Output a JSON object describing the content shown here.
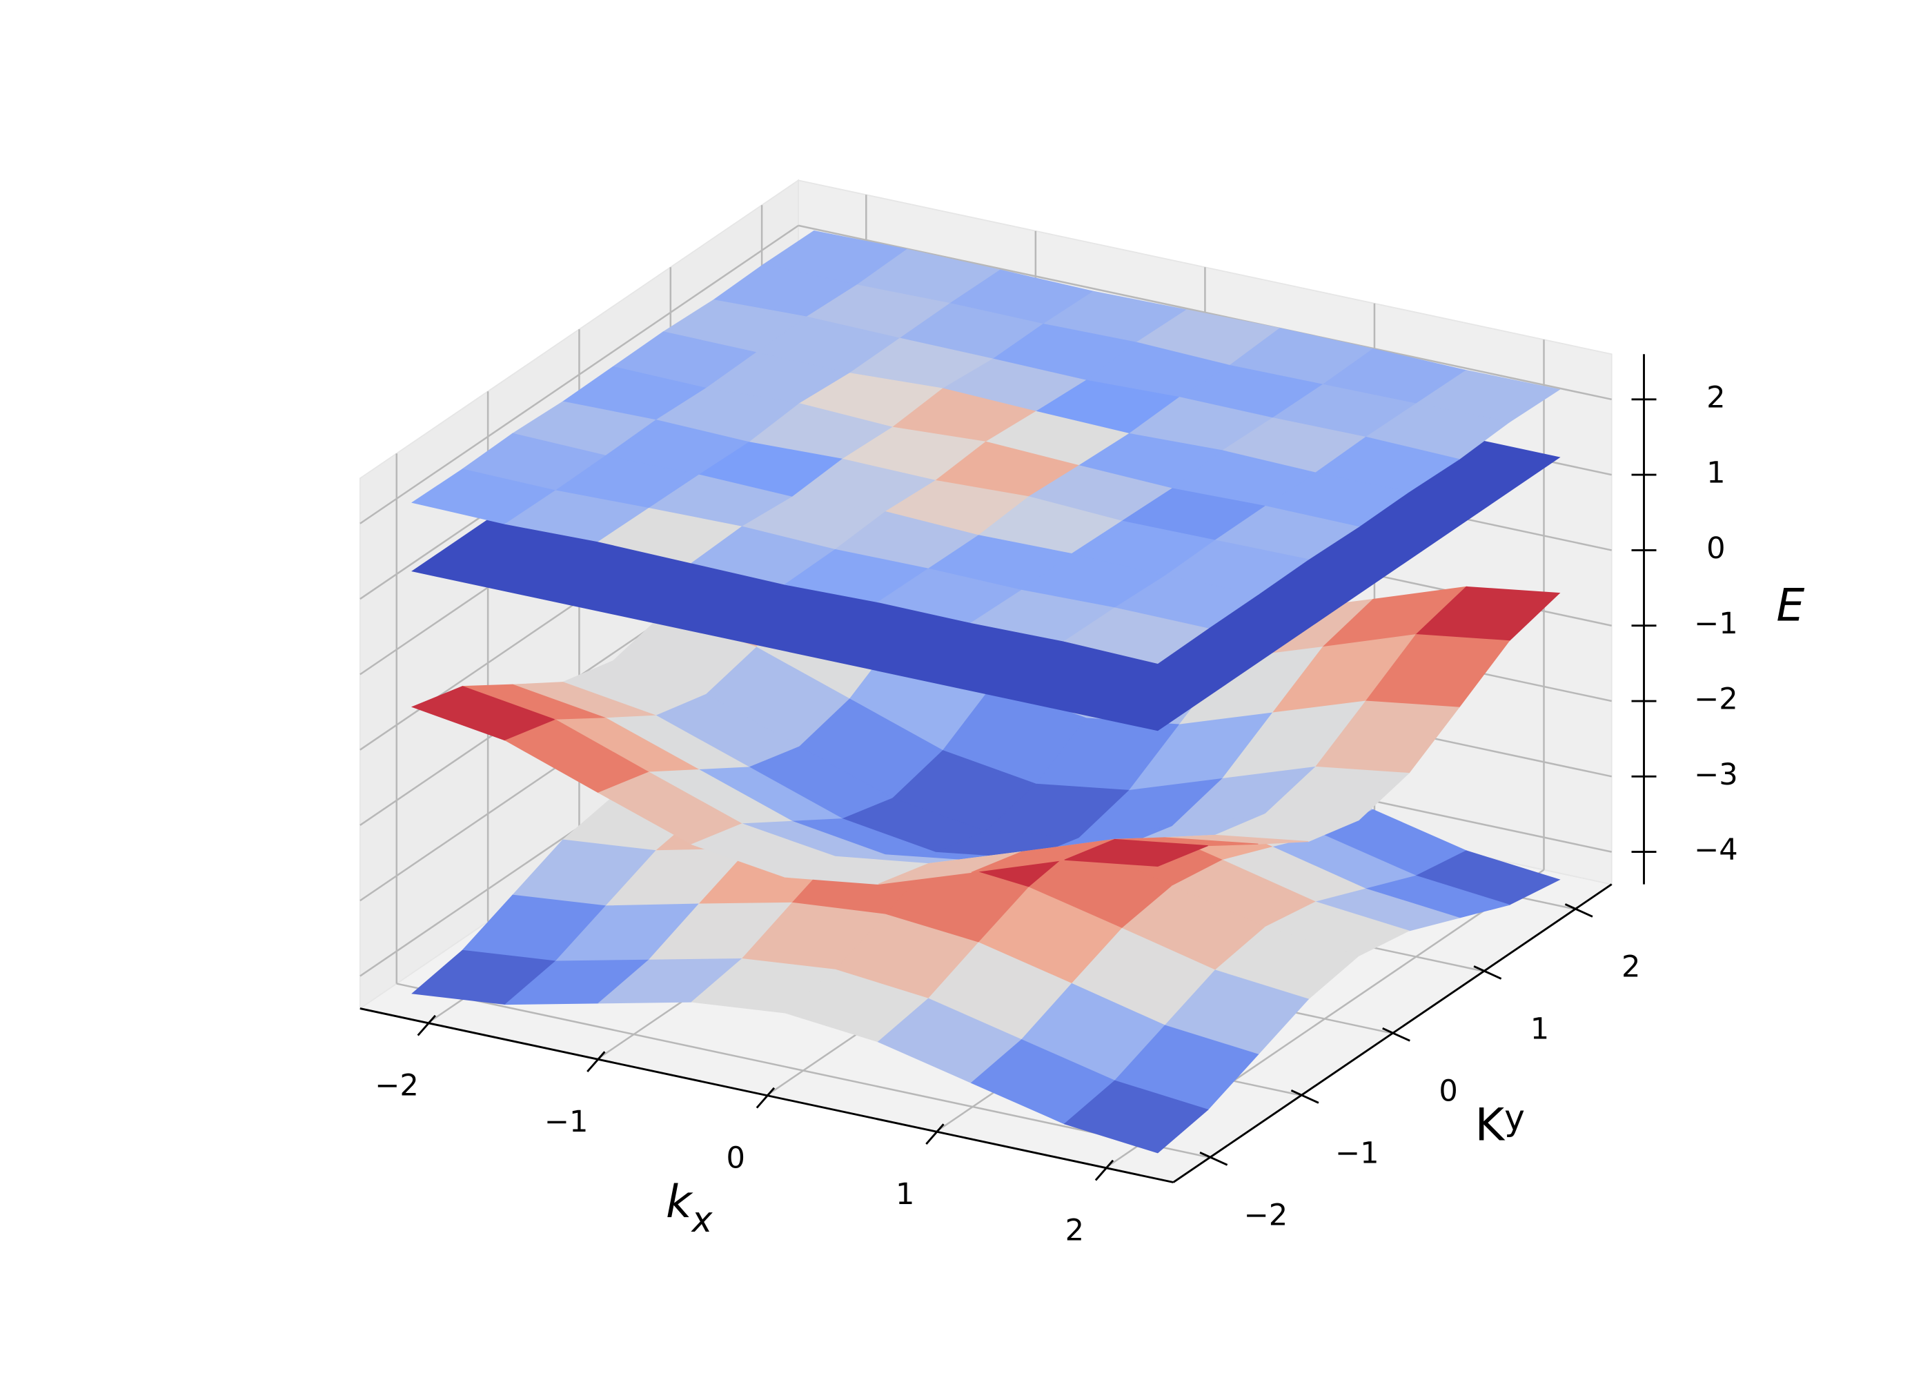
{
  "chart_data": {
    "type": "surface3d",
    "colormap": "coolwarm",
    "xlabel": {
      "text": "k",
      "subscript": "x"
    },
    "ylabel": {
      "text": "K",
      "subscript": "y"
    },
    "zlabel": "E",
    "xlim": [
      -2.4,
      2.4
    ],
    "ylim": [
      -2.4,
      2.4
    ],
    "zlim": [
      -4.43,
      2.6
    ],
    "xticks": [
      {
        "value": -2,
        "label": "−2"
      },
      {
        "value": -1,
        "label": "−1"
      },
      0,
      1,
      2
    ],
    "yticks": [
      {
        "value": -2,
        "label": "−2"
      },
      {
        "value": -1,
        "label": "−1"
      },
      0,
      1,
      2
    ],
    "zticks": [
      {
        "value": -4,
        "label": "−4"
      },
      {
        "value": -3,
        "label": "−3"
      },
      {
        "value": -2,
        "label": "−2"
      },
      {
        "value": -1,
        "label": "−1"
      },
      0,
      1,
      2
    ],
    "grid": true,
    "series": [
      {
        "x": [
          -2.2,
          -1.65,
          -1.1,
          -0.55,
          0,
          0.55,
          1.1,
          1.65,
          2.2
        ],
        "y": [
          -2.2,
          -1.65,
          -1.1,
          -0.55,
          0,
          0.55,
          1.1,
          1.65,
          2.2
        ],
        "z": [
          [
            -4.3,
            -4.18,
            -3.9,
            -3.62,
            -3.5,
            -3.62,
            -3.9,
            -4.18,
            -4.3
          ],
          [
            -4.18,
            -4.06,
            -3.78,
            -3.5,
            -3.38,
            -3.5,
            -3.78,
            -4.06,
            -4.18
          ],
          [
            -3.9,
            -3.78,
            -3.49,
            -3.21,
            -3.1,
            -3.21,
            -3.49,
            -3.78,
            -3.9
          ],
          [
            -3.62,
            -3.5,
            -3.21,
            -2.93,
            -2.82,
            -2.93,
            -3.21,
            -3.5,
            -3.62
          ],
          [
            -3.5,
            -3.38,
            -3.1,
            -2.82,
            -2.7,
            -2.82,
            -3.1,
            -3.38,
            -3.5
          ],
          [
            -3.62,
            -3.5,
            -3.21,
            -2.93,
            -2.82,
            -2.93,
            -3.21,
            -3.5,
            -3.62
          ],
          [
            -3.9,
            -3.78,
            -3.49,
            -3.21,
            -3.1,
            -3.21,
            -3.49,
            -3.78,
            -3.9
          ],
          [
            -4.18,
            -4.06,
            -3.78,
            -3.5,
            -3.38,
            -3.5,
            -3.78,
            -4.06,
            -4.18
          ],
          [
            -4.3,
            -4.18,
            -3.9,
            -3.62,
            -3.5,
            -3.62,
            -3.9,
            -4.18,
            -4.3
          ]
        ]
      },
      {
        "x": [
          -2.2,
          -1.65,
          -1.1,
          -0.55,
          0,
          0.55,
          1.1,
          1.65,
          2.2
        ],
        "y": [
          -2.2,
          -1.65,
          -1.1,
          -0.55,
          0,
          0.55,
          1.1,
          1.65,
          2.2
        ],
        "z": [
          [
            -0.5,
            -0.68,
            -1.11,
            -1.53,
            -1.7,
            -1.53,
            -1.11,
            -0.68,
            -0.5
          ],
          [
            -0.68,
            -0.86,
            -1.29,
            -1.71,
            -1.88,
            -1.71,
            -1.29,
            -0.86,
            -0.68
          ],
          [
            -1.11,
            -1.29,
            -1.71,
            -2.13,
            -2.31,
            -2.13,
            -1.71,
            -1.29,
            -1.11
          ],
          [
            -1.53,
            -1.71,
            -2.13,
            -2.55,
            -2.73,
            -2.55,
            -2.13,
            -1.71,
            -1.53
          ],
          [
            -1.7,
            -1.88,
            -2.31,
            -2.73,
            -2.9,
            -2.73,
            -2.31,
            -1.88,
            -1.7
          ],
          [
            -1.53,
            -1.71,
            -2.13,
            -2.55,
            -2.73,
            -2.55,
            -2.13,
            -1.71,
            -1.53
          ],
          [
            -1.11,
            -1.29,
            -1.71,
            -2.13,
            -2.31,
            -2.13,
            -1.71,
            -1.29,
            -1.11
          ],
          [
            -0.68,
            -0.86,
            -1.29,
            -1.71,
            -1.88,
            -1.71,
            -1.29,
            -0.86,
            -0.68
          ],
          [
            -0.5,
            -0.68,
            -1.11,
            -1.53,
            -1.7,
            -1.53,
            -1.11,
            -0.68,
            -0.5
          ]
        ]
      },
      {
        "x": [
          -2.2,
          2.2
        ],
        "y": [
          -2.2,
          2.2
        ],
        "z": [
          [
            1.3,
            1.3
          ],
          [
            1.3,
            1.3
          ]
        ]
      },
      {
        "x": [
          -2.2,
          -1.65,
          -1.1,
          -0.55,
          0,
          0.55,
          1.1,
          1.65,
          2.2
        ],
        "y": [
          -2.2,
          -1.65,
          -1.1,
          -0.55,
          0,
          0.55,
          1.1,
          1.65,
          2.2
        ],
        "z": [
          [
            2.21,
            2.19,
            2.22,
            2.2,
            2.18,
            2.21,
            2.2,
            2.22,
            2.19
          ],
          [
            2.2,
            2.18,
            2.21,
            2.23,
            2.19,
            2.2,
            2.18,
            2.21,
            2.2
          ],
          [
            2.22,
            2.19,
            2.2,
            2.17,
            2.24,
            2.19,
            2.21,
            2.18,
            2.2
          ],
          [
            2.19,
            2.21,
            2.18,
            2.22,
            2.2,
            2.25,
            2.19,
            2.2,
            2.21
          ],
          [
            2.2,
            2.18,
            2.24,
            2.19,
            2.26,
            2.21,
            2.17,
            2.2,
            2.19
          ],
          [
            2.21,
            2.2,
            2.19,
            2.25,
            2.21,
            2.18,
            2.22,
            2.19,
            2.2
          ],
          [
            2.18,
            2.22,
            2.2,
            2.19,
            2.17,
            2.21,
            2.2,
            2.21,
            2.18
          ],
          [
            2.2,
            2.19,
            2.21,
            2.2,
            2.22,
            2.18,
            2.19,
            2.2,
            2.22
          ],
          [
            2.19,
            2.21,
            2.2,
            2.18,
            2.2,
            2.22,
            2.21,
            2.19,
            2.2
          ]
        ]
      }
    ]
  }
}
